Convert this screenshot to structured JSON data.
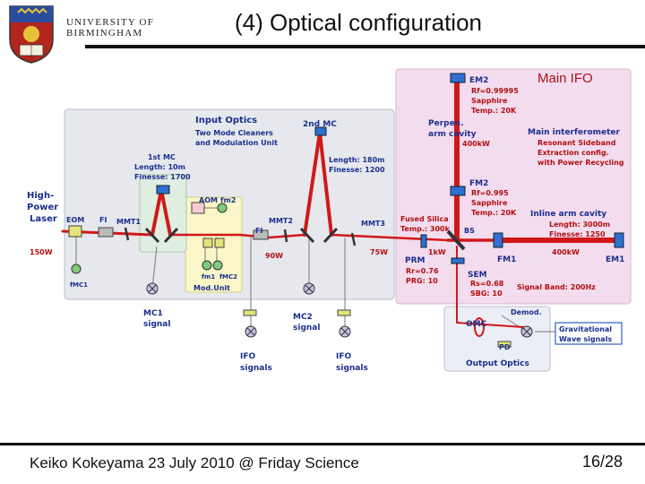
{
  "header": {
    "title": "(4) Optical configuration",
    "university_line1": "UNIVERSITY OF",
    "university_line2": "BIRMINGHAM"
  },
  "footer": {
    "left": "Keiko Kokeyama 23 July 2010 @ Friday Science",
    "right": "16/28"
  },
  "diagram": {
    "main_ifo_label": "Main IFO",
    "input_optics": {
      "heading": "Input Optics",
      "sub1": "Two Mode Cleaners",
      "sub2": "and Modulation Unit"
    },
    "second_mc": {
      "label": "2nd MC",
      "length": "Length: 180m",
      "finesse": "Finesse: 1200"
    },
    "first_mc": {
      "label": "1st MC",
      "length": "Length: 10m",
      "finesse": "Finesse: 1700"
    },
    "laser": {
      "line1": "High-",
      "line2": "Power",
      "line3": "Laser",
      "power": "150W"
    },
    "components": {
      "eom": "EOM",
      "fi1": "FI",
      "mmt1": "MMT1",
      "aom": "AOM",
      "fm2_freq": "fm2",
      "fi2": "FI",
      "mmt2": "MMT2",
      "mmt3": "MMT3",
      "power_90": "90W",
      "power_75": "75W",
      "fmc1": "fMC1",
      "fm1": "fm1",
      "fmc2": "fMC2",
      "mod_unit": "Mod.Unit",
      "mc1_signal_1": "MC1",
      "mc1_signal_2": "signal",
      "mc2_signal_1": "MC2",
      "mc2_signal_2": "signal",
      "ifo_signals_a1": "IFO",
      "ifo_signals_a2": "signals",
      "ifo_signals_b1": "IFO",
      "ifo_signals_b2": "signals"
    },
    "main_ifo": {
      "em2": "EM2",
      "em2_rf": "Rf=0.99995",
      "em2_mat": "Sapphire",
      "em2_temp": "Temp.: 20K",
      "perp_1": "Perpen.",
      "perp_2": "arm cavity",
      "power_400_perp": "400kW",
      "main_interferometer": "Main interferometer",
      "rse1": "Resonant Sideband",
      "rse2": "Extraction config.",
      "rse3": "with Power Recycling",
      "fm2": "FM2",
      "fm2_rf": "Rf=0.995",
      "fm2_mat": "Sapphire",
      "fm2_temp": "Temp.: 20K",
      "inline_arm": "Inline arm cavity",
      "inline_length": "Length: 3000m",
      "inline_finesse": "Finesse: 1250",
      "fused_silica": "Fused Silica",
      "temp_300": "Temp.: 300k",
      "bs": "BS",
      "prm": "PRM",
      "power_1k": "1kW",
      "power_400_inline": "400kW",
      "fm1": "FM1",
      "em1": "EM1",
      "prm_rr": "Rr=0.76",
      "prm_prg": "PRG: 10",
      "sem": "SEM",
      "sem_rs": "Rs=0.68",
      "sem_sbg": "SBG: 10",
      "signal_band": "Signal Band: 200Hz"
    },
    "output_optics": {
      "demod": "Demod.",
      "omc": "OMC",
      "pd": "PD",
      "gw1": "Gravitational",
      "gw2": "Wave signals",
      "label": "Output Optics"
    }
  },
  "colors": {
    "beam": "#d11818",
    "label_red": "#b01010",
    "label_blue": "#1a2f8c",
    "input_box": "#e6e8ee",
    "main_ifo_box": "#f4dcef",
    "output_box": "#eceef6",
    "mod_unit_box": "#fbf6c8",
    "mirror_blue": "#2e6fd0"
  }
}
